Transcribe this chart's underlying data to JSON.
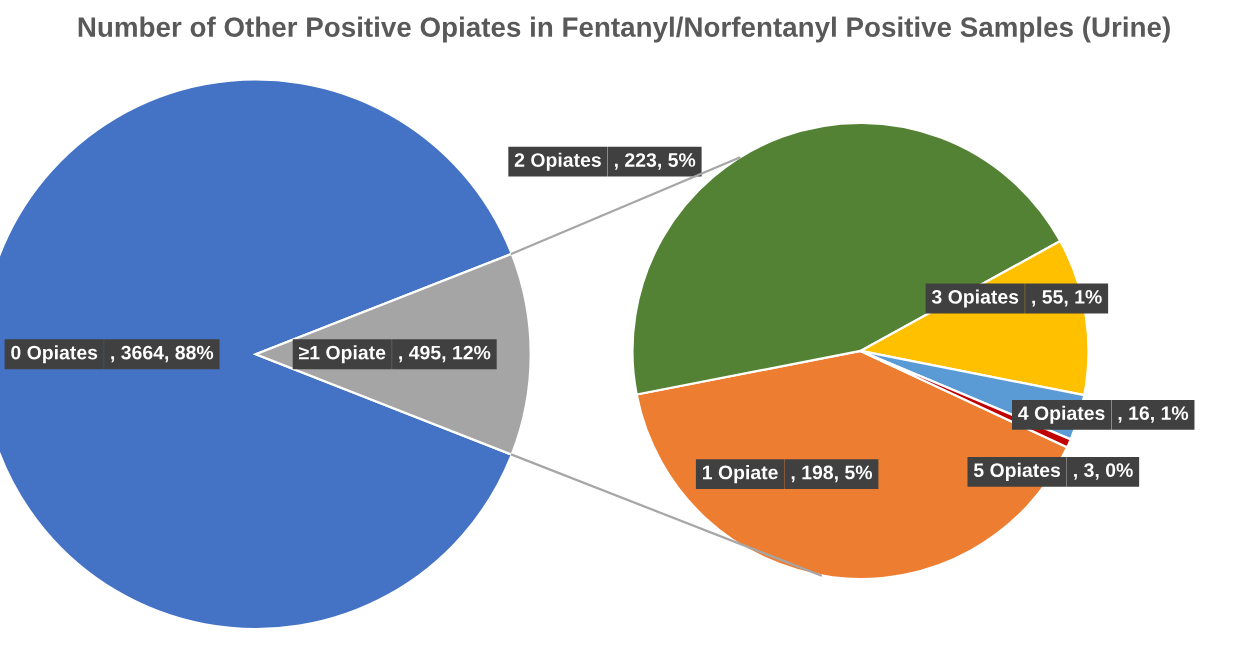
{
  "chart_data": [
    {
      "type": "pie",
      "title": "Number of Other Positive Opiates in Fentanyl/Norfentanyl Positive Samples (Urine)",
      "categories": [
        "0 Opiates",
        "≥1 Opiate"
      ],
      "values": [
        3664,
        495
      ],
      "colors": [
        "#4472c4",
        "#a5a5a5"
      ],
      "value_labels": [
        ", 3664, 88%",
        ", 495, 12%"
      ]
    },
    {
      "type": "pie",
      "categories": [
        "1 Opiate",
        "2 Opiates",
        "3 Opiates",
        "4 Opiates",
        "5 Opiates"
      ],
      "values": [
        198,
        223,
        55,
        16,
        3
      ],
      "colors": [
        "#ed7d31",
        "#548235",
        "#ffc000",
        "#5b9bd5",
        "#c00000"
      ],
      "value_labels": [
        ", 198, 5%",
        ", 223, 5%",
        ", 55, 1%",
        ", 16, 1%",
        ", 3, 0%"
      ]
    }
  ]
}
